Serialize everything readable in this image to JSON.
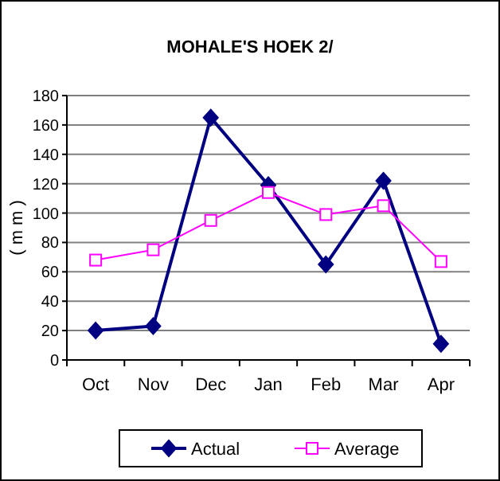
{
  "chart_data": {
    "type": "line",
    "title": "MOHALE'S HOEK 2/",
    "ylabel": "( m m )",
    "categories": [
      "Oct",
      "Nov",
      "Dec",
      "Jan",
      "Feb",
      "Mar",
      "Apr"
    ],
    "series": [
      {
        "name": "Actual",
        "color": "#000080",
        "marker": "diamond",
        "values": [
          20,
          23,
          165,
          119,
          65,
          122,
          11
        ]
      },
      {
        "name": "Average",
        "color": "#ff00ff",
        "marker": "square",
        "values": [
          68,
          75,
          95,
          114,
          99,
          105,
          67
        ]
      }
    ],
    "ylim": [
      0,
      180
    ],
    "yticks": [
      0,
      20,
      40,
      60,
      80,
      100,
      120,
      140,
      160,
      180
    ],
    "grid": "y",
    "legend": "bottom"
  }
}
